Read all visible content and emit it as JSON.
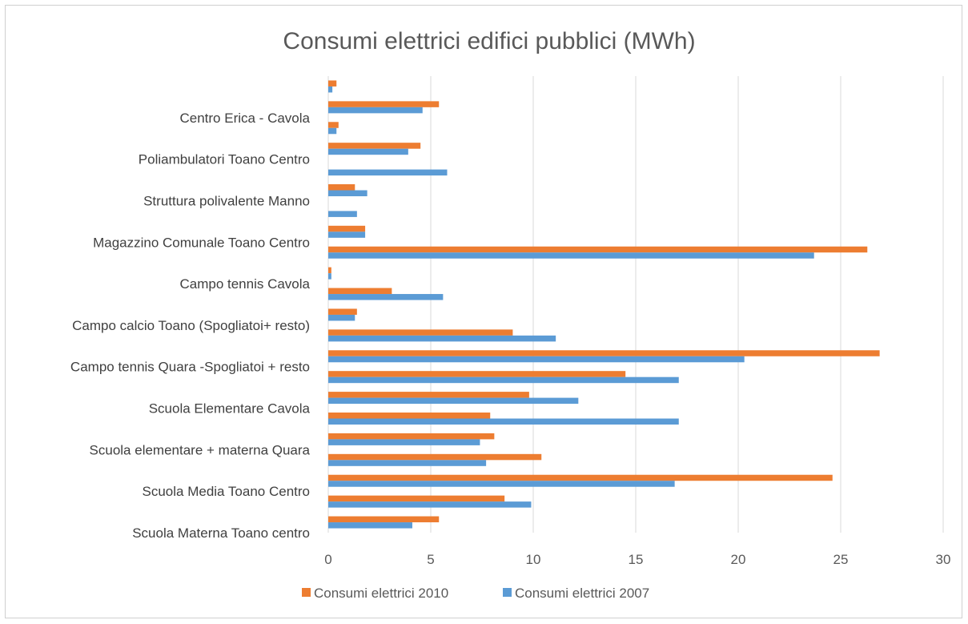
{
  "chart_data": {
    "type": "bar",
    "orientation": "horizontal",
    "title": "Consumi elettrici edifici pubblici (MWh)",
    "xlabel": "",
    "ylabel": "",
    "xlim": [
      0,
      30
    ],
    "x_ticks": [
      0,
      5,
      10,
      15,
      20,
      25,
      30
    ],
    "grid": true,
    "legend_position": "bottom",
    "categories": [
      "Scuola Materna Toano centro",
      "",
      "Scuola Media Toano Centro",
      "",
      "Scuola elementare + materna Quara",
      "",
      "Scuola Elementare Cavola",
      "",
      "Campo tennis Quara -Spogliatoi + resto",
      "",
      "Campo calcio Toano (Spogliatoi+ resto)",
      "",
      "Campo tennis Cavola",
      "",
      "Magazzino Comunale Toano Centro",
      "",
      "Struttura polivalente Manno",
      "",
      "Poliambulatori Toano Centro",
      "",
      "Centro Erica - Cavola",
      ""
    ],
    "series": [
      {
        "name": "Consumi elettrici 2010",
        "color": "#ED7D31",
        "values": [
          5.4,
          8.6,
          24.6,
          10.4,
          8.1,
          7.9,
          9.8,
          14.5,
          26.9,
          9.0,
          1.4,
          3.1,
          0.15,
          26.3,
          1.8,
          0,
          1.3,
          0,
          4.5,
          0.5,
          5.4,
          0.4
        ]
      },
      {
        "name": "Consumi elettrici 2007",
        "color": "#5B9BD5",
        "values": [
          4.1,
          9.9,
          16.9,
          7.7,
          7.4,
          17.1,
          12.2,
          17.1,
          20.3,
          11.1,
          1.3,
          5.6,
          0.15,
          23.7,
          1.8,
          1.4,
          1.9,
          5.8,
          3.9,
          0.4,
          4.6,
          0.2
        ]
      }
    ]
  }
}
